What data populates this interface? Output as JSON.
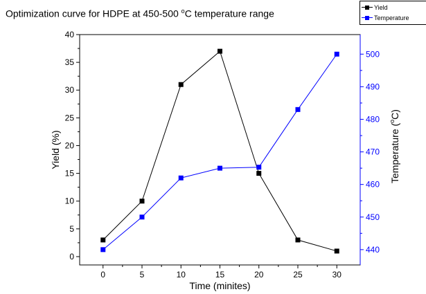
{
  "chart_data": {
    "type": "line",
    "title": "Optimization curve for HDPE at 450-500 °C temperature range",
    "title_parts": {
      "before_degree": "Optimization curve for HDPE at 450-500 ",
      "degree": "o",
      "after_degree": "C temperature range"
    },
    "xlabel": "Time (minites)",
    "ylabel_left": "Yield (%)",
    "ylabel_right": "Temperature (°C)",
    "ylabel_right_parts": {
      "before": "Temperature (",
      "degree": "o",
      "after": "C)"
    },
    "x": [
      0,
      5,
      10,
      15,
      20,
      25,
      30
    ],
    "xlim": [
      -3,
      33
    ],
    "ylim_left": [
      -1.5,
      40
    ],
    "ylim_right": [
      435.3,
      506
    ],
    "xticks": [
      0,
      5,
      10,
      15,
      20,
      25,
      30
    ],
    "yticks_left": [
      0,
      5,
      10,
      15,
      20,
      25,
      30,
      35,
      40
    ],
    "yticks_right": [
      440,
      450,
      460,
      470,
      480,
      490,
      500
    ],
    "series": [
      {
        "name": "Yield",
        "axis": "left",
        "color": "#000000",
        "values": [
          3,
          10,
          31,
          37,
          15,
          3,
          1
        ]
      },
      {
        "name": "Temperature",
        "axis": "right",
        "color": "#0000ff",
        "values": [
          440,
          450,
          462,
          465,
          465.3,
          483,
          500
        ]
      }
    ],
    "legend_position": "top-right",
    "grid": false
  },
  "legend": {
    "items": [
      {
        "label": "Yield",
        "color": "#000000"
      },
      {
        "label": "Temperature",
        "color": "#0000ff"
      }
    ]
  }
}
